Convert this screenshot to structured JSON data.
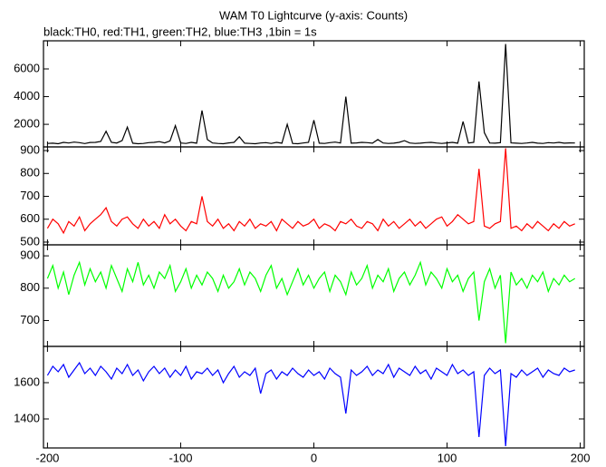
{
  "chart_data": {
    "type": "line",
    "title": "WAM T0 Lightcurve (y-axis: Counts)",
    "subtitle": "black:TH0, red:TH1, green:TH2, blue:TH3 ,1bin = 1s",
    "x": [
      -200,
      -196,
      -192,
      -188,
      -184,
      -180,
      -176,
      -172,
      -168,
      -164,
      -160,
      -156,
      -152,
      -148,
      -144,
      -140,
      -136,
      -132,
      -128,
      -124,
      -120,
      -116,
      -112,
      -108,
      -104,
      -100,
      -96,
      -92,
      -88,
      -84,
      -80,
      -76,
      -72,
      -68,
      -64,
      -60,
      -56,
      -52,
      -48,
      -44,
      -40,
      -36,
      -32,
      -28,
      -24,
      -20,
      -16,
      -12,
      -8,
      -4,
      0,
      4,
      8,
      12,
      16,
      20,
      24,
      28,
      32,
      36,
      40,
      44,
      48,
      52,
      56,
      60,
      64,
      68,
      72,
      76,
      80,
      84,
      88,
      92,
      96,
      100,
      104,
      108,
      112,
      116,
      120,
      124,
      128,
      132,
      136,
      140,
      144,
      148,
      152,
      156,
      160,
      164,
      168,
      172,
      176,
      180,
      184,
      188,
      192,
      196
    ],
    "xlim": [
      -203,
      203
    ],
    "xticks": [
      -200,
      -100,
      0,
      100,
      200
    ],
    "panels": [
      {
        "color": "#000000",
        "ylim": [
          370,
          8030
        ],
        "yticks": [
          2000,
          4000,
          6000
        ],
        "values": [
          620,
          640,
          600,
          700,
          650,
          720,
          680,
          610,
          690,
          700,
          760,
          1500,
          700,
          650,
          820,
          1800,
          640,
          600,
          620,
          680,
          700,
          750,
          660,
          800,
          1900,
          650,
          620,
          700,
          640,
          3000,
          900,
          650,
          620,
          600,
          660,
          700,
          1100,
          640,
          620,
          600,
          650,
          680,
          620,
          700,
          640,
          2000,
          620,
          600,
          650,
          700,
          2300,
          640,
          620,
          680,
          720,
          650,
          4000,
          640,
          660,
          700,
          680,
          640,
          900,
          650,
          620,
          640,
          700,
          820,
          650,
          620,
          640,
          680,
          700,
          650,
          620,
          660,
          700,
          640,
          2200,
          650,
          700,
          5100,
          1400,
          650,
          640,
          680,
          7800,
          660,
          640,
          620,
          650,
          700,
          640,
          620,
          680,
          650,
          700,
          640,
          660,
          650
        ]
      },
      {
        "color": "#ff0000",
        "ylim": [
          488,
          916
        ],
        "yticks": [
          500,
          600,
          700,
          800,
          900
        ],
        "values": [
          560,
          600,
          580,
          540,
          590,
          570,
          610,
          550,
          580,
          600,
          620,
          650,
          590,
          570,
          600,
          610,
          580,
          560,
          600,
          570,
          590,
          560,
          620,
          580,
          600,
          570,
          550,
          590,
          580,
          700,
          590,
          570,
          600,
          560,
          580,
          550,
          590,
          570,
          600,
          560,
          580,
          570,
          590,
          550,
          600,
          580,
          560,
          590,
          570,
          580,
          600,
          560,
          580,
          570,
          550,
          590,
          580,
          600,
          570,
          560,
          590,
          580,
          550,
          600,
          570,
          590,
          560,
          580,
          600,
          570,
          590,
          560,
          580,
          600,
          610,
          570,
          590,
          620,
          600,
          580,
          590,
          820,
          570,
          560,
          580,
          590,
          910,
          560,
          570,
          550,
          580,
          560,
          590,
          570,
          550,
          580,
          560,
          590,
          570,
          580
        ]
      },
      {
        "color": "#00ff00",
        "ylim": [
          620,
          934
        ],
        "yticks": [
          700,
          800,
          900
        ],
        "values": [
          830,
          870,
          800,
          850,
          780,
          840,
          880,
          810,
          860,
          820,
          850,
          800,
          870,
          830,
          790,
          860,
          820,
          880,
          810,
          840,
          800,
          850,
          830,
          870,
          790,
          820,
          860,
          800,
          840,
          810,
          850,
          830,
          790,
          840,
          800,
          820,
          860,
          810,
          850,
          830,
          790,
          840,
          870,
          800,
          830,
          780,
          820,
          860,
          810,
          840,
          800,
          830,
          850,
          790,
          840,
          820,
          780,
          850,
          810,
          830,
          870,
          800,
          840,
          820,
          860,
          790,
          830,
          850,
          810,
          840,
          880,
          810,
          850,
          830,
          800,
          860,
          820,
          840,
          790,
          830,
          850,
          700,
          820,
          860,
          800,
          840,
          630,
          850,
          810,
          830,
          800,
          840,
          820,
          850,
          790,
          830,
          810,
          840,
          820,
          830
        ]
      },
      {
        "color": "#0000ff",
        "ylim": [
          1240,
          1800
        ],
        "yticks": [
          1400,
          1600
        ],
        "values": [
          1640,
          1690,
          1660,
          1700,
          1630,
          1670,
          1710,
          1650,
          1680,
          1640,
          1690,
          1660,
          1620,
          1680,
          1650,
          1700,
          1640,
          1670,
          1610,
          1660,
          1690,
          1650,
          1680,
          1630,
          1670,
          1640,
          1690,
          1620,
          1660,
          1650,
          1680,
          1640,
          1670,
          1600,
          1650,
          1690,
          1630,
          1660,
          1640,
          1680,
          1540,
          1650,
          1670,
          1620,
          1660,
          1640,
          1680,
          1650,
          1630,
          1670,
          1640,
          1660,
          1620,
          1680,
          1650,
          1630,
          1430,
          1670,
          1640,
          1660,
          1690,
          1640,
          1670,
          1650,
          1700,
          1630,
          1680,
          1660,
          1640,
          1690,
          1650,
          1670,
          1620,
          1680,
          1660,
          1640,
          1700,
          1650,
          1670,
          1640,
          1660,
          1300,
          1640,
          1680,
          1650,
          1670,
          1250,
          1650,
          1630,
          1670,
          1640,
          1660,
          1680,
          1630,
          1670,
          1650,
          1640,
          1680,
          1660,
          1670
        ]
      }
    ]
  }
}
